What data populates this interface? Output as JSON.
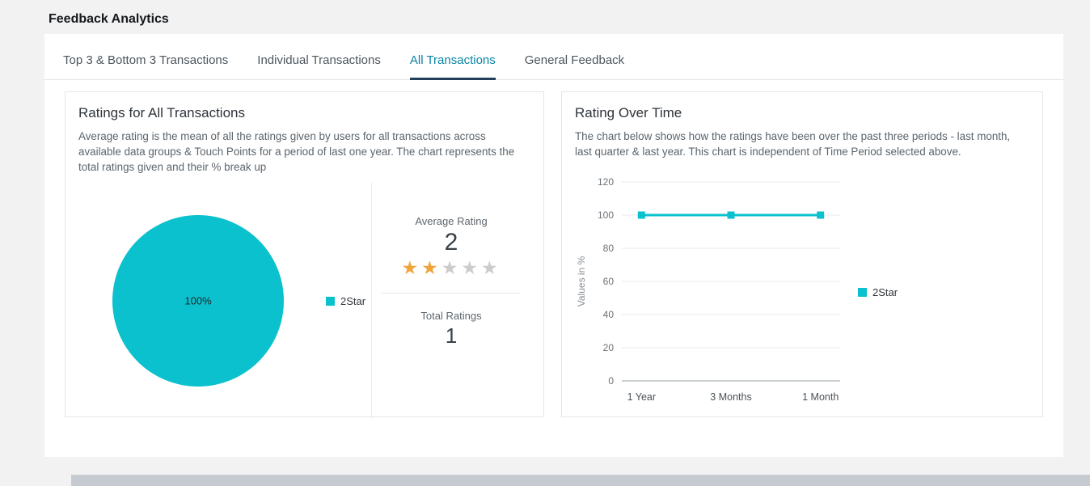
{
  "page": {
    "title": "Feedback Analytics"
  },
  "tabs": [
    {
      "label": "Top 3 & Bottom 3 Transactions",
      "active": false
    },
    {
      "label": "Individual Transactions",
      "active": false
    },
    {
      "label": "All Transactions",
      "active": true
    },
    {
      "label": "General Feedback",
      "active": false
    }
  ],
  "ratings_card": {
    "title": "Ratings for All Transactions",
    "description": "Average rating is the mean of all the ratings given by users for all transactions across available data groups & Touch Points for a period of last one year. The chart represents the total ratings given and their % break up",
    "average_rating_label": "Average Rating",
    "average_rating_value": "2",
    "stars_filled": 2,
    "stars_total": 5,
    "total_ratings_label": "Total Ratings",
    "total_ratings_value": "1"
  },
  "over_time_card": {
    "title": "Rating Over Time",
    "description": "The chart below shows how the ratings have been over the past three periods - last month, last quarter & last year. This chart is independent of Time Period selected above."
  },
  "colors": {
    "accent": "#0bc1cd",
    "tab_active_text": "#0a84a5",
    "tab_active_underline": "#22405a",
    "star_filled": "#f0a43c",
    "star_empty": "#cccccc"
  },
  "chart_data": [
    {
      "type": "pie",
      "title": "Ratings for All Transactions",
      "slices": [
        {
          "label": "2Star",
          "value": 100,
          "color": "#0bc1cd"
        }
      ],
      "data_label": "100%",
      "legend_position": "right"
    },
    {
      "type": "line",
      "title": "Rating Over Time",
      "categories": [
        "1 Year",
        "3 Months",
        "1 Month"
      ],
      "series": [
        {
          "name": "2Star",
          "values": [
            100,
            100,
            100
          ],
          "color": "#0bc1cd"
        }
      ],
      "ylabel": "Values in %",
      "ylim": [
        0,
        120
      ],
      "yticks": [
        0,
        20,
        40,
        60,
        80,
        100,
        120
      ],
      "grid": true,
      "legend_position": "right"
    }
  ]
}
